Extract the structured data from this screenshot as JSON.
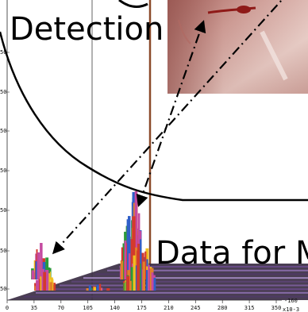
{
  "labels": {
    "detection": "Detection",
    "data_for": "Data for M"
  },
  "axis": {
    "x_ticks": [
      "0",
      "35",
      "70",
      "105",
      "140",
      "175",
      "210",
      "245",
      "280",
      "315",
      "350"
    ],
    "x_exponent": "x10-3",
    "z_tick": "-160",
    "y_ticks": [
      "50",
      "50",
      "50",
      "50",
      "50",
      "50"
    ]
  },
  "photo": {
    "description_colors": [
      "#a0605a",
      "#c9918b",
      "#e5c9c3",
      "#8f1a18"
    ]
  },
  "chart_data": {
    "type": "bar",
    "categories": [],
    "series": [],
    "xlim": [
      0,
      350
    ],
    "x_ticks": [
      0,
      35,
      70,
      105,
      140,
      175,
      210,
      245,
      280,
      315,
      350
    ],
    "x_exponent_label": "x10-3",
    "colors": [
      "#d33a2c",
      "#2a9a3a",
      "#2f5fc8",
      "#f0c020",
      "#c44aa0",
      "#e0802a"
    ]
  }
}
